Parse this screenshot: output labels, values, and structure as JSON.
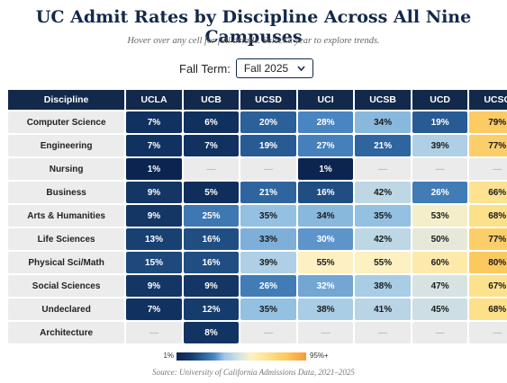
{
  "header": {
    "title": "UC Admit Rates by Discipline Across All Nine Campuses",
    "subtitle": "Hover over any cell for full details. Select a year to explore trends."
  },
  "controls": {
    "label": "Fall Term:",
    "selected": "Fall 2025"
  },
  "table": {
    "columns": [
      "Discipline",
      "UCLA",
      "UCB",
      "UCSD",
      "UCI",
      "UCSB",
      "UCD",
      "UCSC"
    ],
    "rows": [
      [
        "Computer Science",
        "7%",
        "6%",
        "20%",
        "28%",
        "34%",
        "19%",
        "79%"
      ],
      [
        "Engineering",
        "7%",
        "7%",
        "19%",
        "27%",
        "21%",
        "39%",
        "77%"
      ],
      [
        "Nursing",
        "1%",
        "—",
        "—",
        "1%",
        "—",
        "—",
        "—"
      ],
      [
        "Business",
        "9%",
        "5%",
        "21%",
        "16%",
        "42%",
        "26%",
        "66%"
      ],
      [
        "Arts & Humanities",
        "9%",
        "25%",
        "35%",
        "34%",
        "35%",
        "53%",
        "68%"
      ],
      [
        "Life Sciences",
        "13%",
        "16%",
        "33%",
        "30%",
        "42%",
        "50%",
        "77%"
      ],
      [
        "Physical Sci/Math",
        "15%",
        "16%",
        "39%",
        "55%",
        "55%",
        "60%",
        "80%"
      ],
      [
        "Social Sciences",
        "9%",
        "9%",
        "26%",
        "32%",
        "38%",
        "47%",
        "67%"
      ],
      [
        "Undeclared",
        "7%",
        "12%",
        "35%",
        "38%",
        "41%",
        "45%",
        "68%"
      ],
      [
        "Architecture",
        "—",
        "8%",
        "—",
        "—",
        "—",
        "—",
        "—"
      ]
    ]
  },
  "legend": {
    "min": "1%",
    "max": "95%+"
  },
  "footer": {
    "source": "Source: University of California Admissions Data, 2021–2025"
  }
}
